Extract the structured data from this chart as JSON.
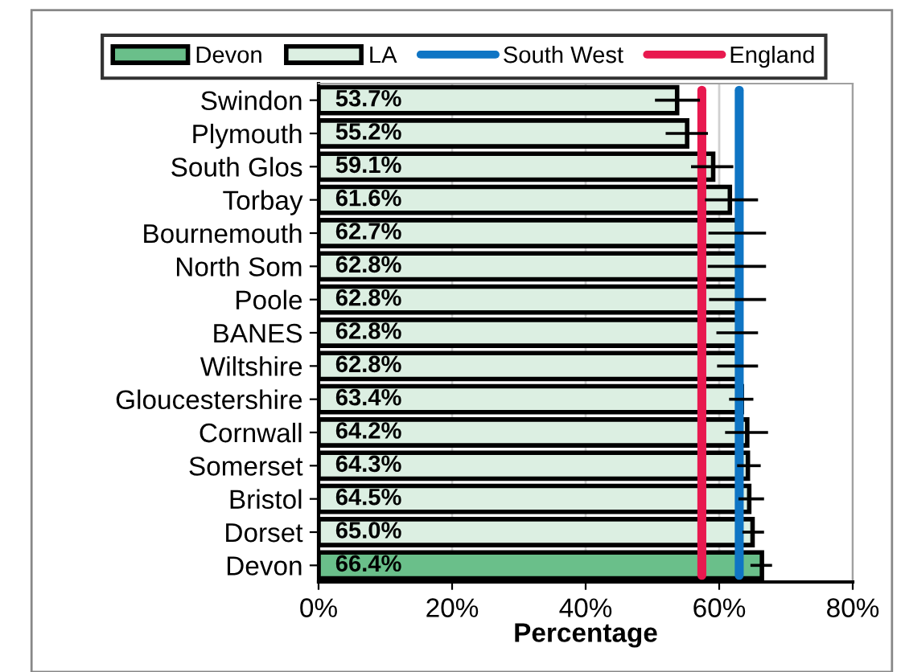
{
  "chart_data": {
    "type": "bar",
    "orientation": "horizontal",
    "xlabel": "Percentage",
    "categories": [
      "Swindon",
      "Plymouth",
      "South Glos",
      "Torbay",
      "Bournemouth",
      "North Som",
      "Poole",
      "BANES",
      "Wiltshire",
      "Gloucestershire",
      "Cornwall",
      "Somerset",
      "Bristol",
      "Dorset",
      "Devon"
    ],
    "series": [
      {
        "name": "Devon",
        "color": "#6abf8a",
        "values": [
          null,
          null,
          null,
          null,
          null,
          null,
          null,
          null,
          null,
          null,
          null,
          null,
          null,
          null,
          66.4
        ],
        "errors": [
          null,
          null,
          null,
          null,
          null,
          null,
          null,
          null,
          null,
          null,
          null,
          null,
          null,
          null,
          [
            64.9,
            67.7
          ]
        ],
        "value_labels": [
          null,
          null,
          null,
          null,
          null,
          null,
          null,
          null,
          null,
          null,
          null,
          null,
          null,
          null,
          "66.4%"
        ]
      },
      {
        "name": "LA",
        "color": "#dcefe2",
        "values": [
          53.7,
          55.2,
          59.1,
          61.6,
          62.7,
          62.8,
          62.8,
          62.8,
          62.8,
          63.4,
          64.2,
          64.3,
          64.5,
          65.0,
          null
        ],
        "errors": [
          [
            50.6,
            56.9
          ],
          [
            52.2,
            58.1
          ],
          [
            56.0,
            61.9
          ],
          [
            58.1,
            65.6
          ],
          [
            58.6,
            66.8
          ],
          [
            58.5,
            66.8
          ],
          [
            58.7,
            66.8
          ],
          [
            59.8,
            65.6
          ],
          [
            59.9,
            65.6
          ],
          [
            61.7,
            64.9
          ],
          [
            61.1,
            67.1
          ],
          [
            62.9,
            66.0
          ],
          [
            63.1,
            66.5
          ],
          [
            63.7,
            66.5
          ],
          null
        ],
        "value_labels": [
          "53.7%",
          "55.2%",
          "59.1%",
          "61.6%",
          "62.7%",
          "62.8%",
          "62.8%",
          "62.8%",
          "62.8%",
          "63.4%",
          "64.2%",
          "64.3%",
          "64.5%",
          "65.0%",
          null
        ]
      }
    ],
    "ref_lines": [
      {
        "axis": "x",
        "value": 63.0,
        "label": "South West",
        "color": "#0f75c4"
      },
      {
        "axis": "x",
        "value": 57.4,
        "label": "England",
        "color": "#e8194f"
      }
    ],
    "xlim": [
      0,
      80
    ],
    "xticks": [
      {
        "value": 0,
        "label": "0%"
      },
      {
        "value": 20,
        "label": "20%"
      },
      {
        "value": 40,
        "label": "40%"
      },
      {
        "value": 60,
        "label": "60%"
      },
      {
        "value": 80,
        "label": "80%"
      }
    ],
    "grid": "x",
    "legend": "top"
  }
}
